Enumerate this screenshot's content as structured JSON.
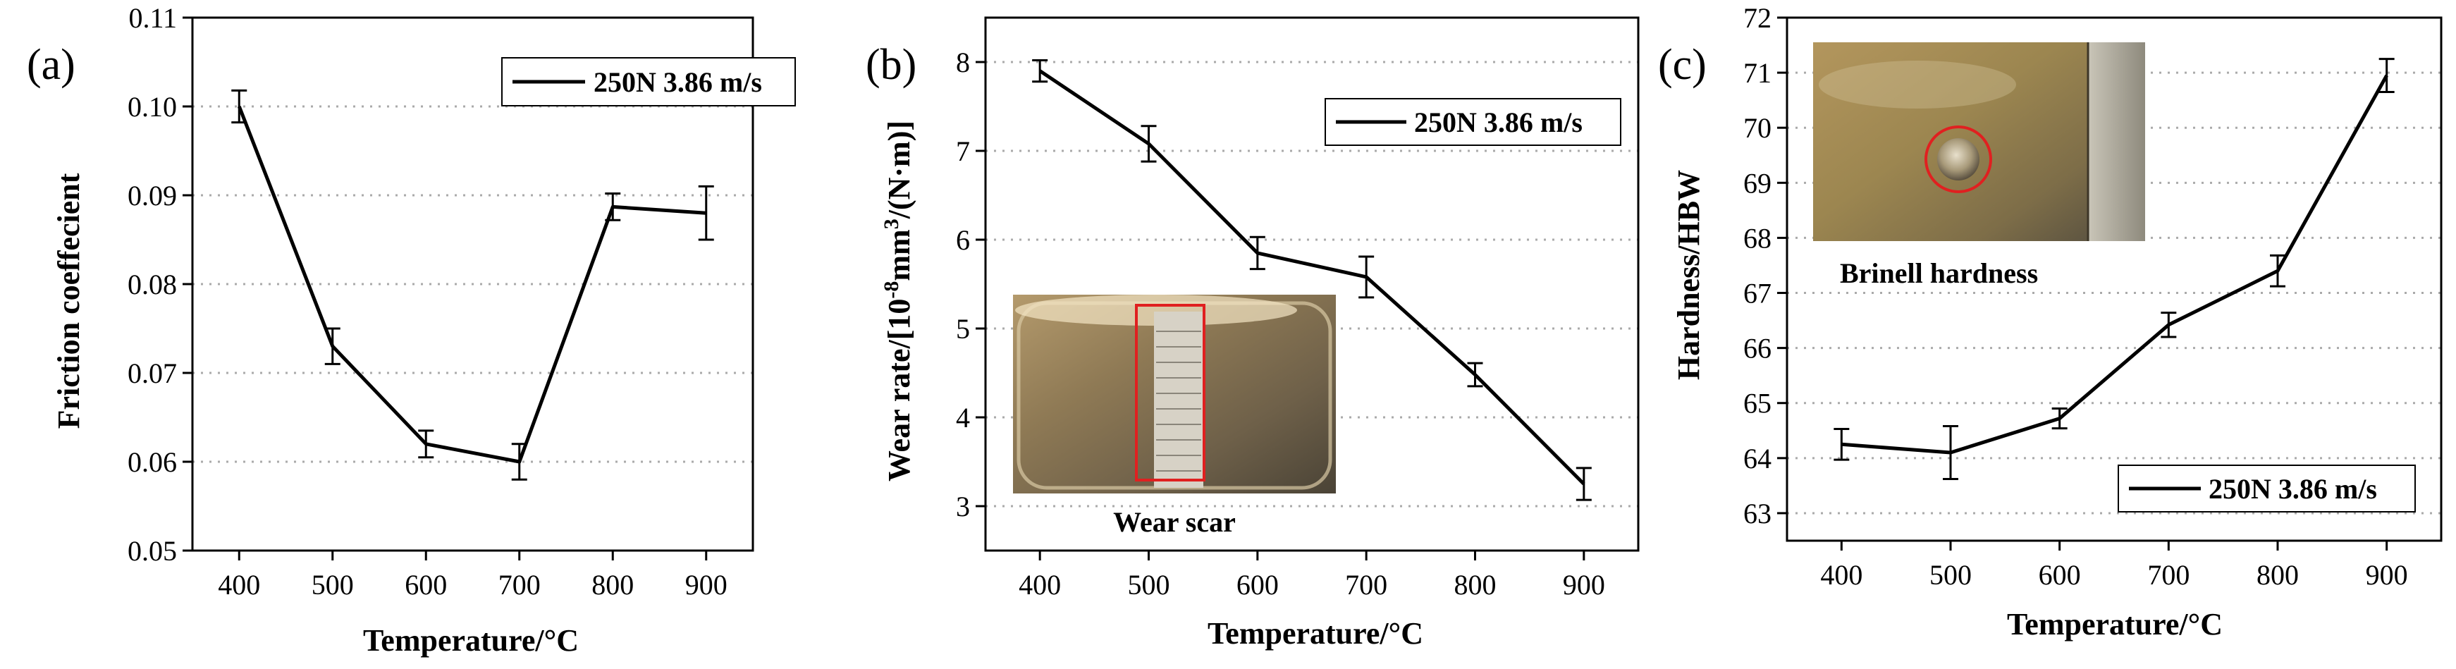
{
  "chart_data": [
    {
      "type": "line",
      "panel_label": "(a)",
      "xlabel": "Temperature/°C",
      "ylabel": "Friction coeffecient",
      "x": [
        400,
        500,
        600,
        700,
        800,
        900
      ],
      "xticks": [
        "400",
        "500",
        "600",
        "700",
        "800",
        "900"
      ],
      "xlim": [
        350,
        950
      ],
      "ylim": [
        0.05,
        0.11
      ],
      "yticks": [
        "0.05",
        "0.06",
        "0.07",
        "0.08",
        "0.09",
        "0.10",
        "0.11"
      ],
      "grid": "horizontal dotted",
      "legend_position": "top-right",
      "series": [
        {
          "name": "250N 3.86 m/s",
          "values": [
            0.1,
            0.073,
            0.062,
            0.06,
            0.0887,
            0.088
          ],
          "error": [
            0.0018,
            0.002,
            0.0015,
            0.002,
            0.0015,
            0.003
          ]
        }
      ]
    },
    {
      "type": "line",
      "panel_label": "(b)",
      "xlabel": "Temperature/°C",
      "ylabel": "Wear rate/[10^-8mm^3/(N·m)]",
      "ylabel_parts": [
        "Wear rate/[10",
        "-8",
        "mm",
        "3",
        "/(N·m)]"
      ],
      "x": [
        400,
        500,
        600,
        700,
        800,
        900
      ],
      "xticks": [
        "400",
        "500",
        "600",
        "700",
        "800",
        "900"
      ],
      "xlim": [
        350,
        950
      ],
      "ylim": [
        2.5,
        8.5
      ],
      "yticks": [
        "3",
        "4",
        "5",
        "6",
        "7",
        "8"
      ],
      "grid": "horizontal dotted",
      "legend_position": "top-right",
      "inset_caption": "Wear scar",
      "series": [
        {
          "name": "250N 3.86 m/s",
          "values": [
            7.9,
            7.08,
            5.85,
            5.58,
            4.48,
            3.25
          ],
          "error": [
            0.12,
            0.2,
            0.18,
            0.23,
            0.13,
            0.18
          ]
        }
      ]
    },
    {
      "type": "line",
      "panel_label": "(c)",
      "xlabel": "Temperature/°C",
      "ylabel": "Hardness/HBW",
      "x": [
        400,
        500,
        600,
        700,
        800,
        900
      ],
      "xticks": [
        "400",
        "500",
        "600",
        "700",
        "800",
        "900"
      ],
      "xlim": [
        350,
        950
      ],
      "ylim": [
        62.5,
        72
      ],
      "yticks": [
        "63",
        "64",
        "65",
        "66",
        "67",
        "68",
        "69",
        "70",
        "71",
        "72"
      ],
      "grid": "horizontal dotted",
      "legend_position": "bottom-right",
      "inset_caption": "Brinell hardness",
      "series": [
        {
          "name": "250N 3.86 m/s",
          "values": [
            64.25,
            64.1,
            64.72,
            66.42,
            67.4,
            70.95
          ],
          "error": [
            0.28,
            0.48,
            0.18,
            0.22,
            0.28,
            0.3
          ]
        }
      ]
    }
  ],
  "colors": {
    "line": "#000000",
    "grid": "#aaaaaa",
    "highlight": "#e02020"
  }
}
